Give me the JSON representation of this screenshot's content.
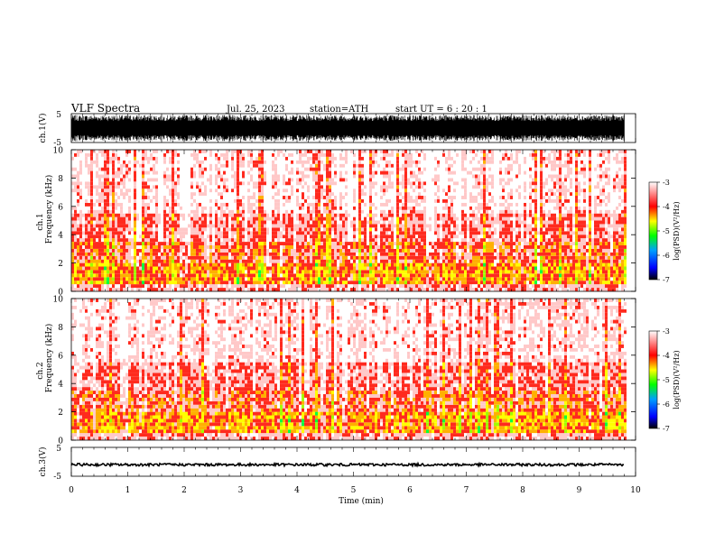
{
  "header": {
    "title": "VLF  Spectra",
    "date": "Jul. 25, 2023",
    "station": "station=ATH",
    "start": "start  UT  =    6  : 20 : 1"
  },
  "chart_data": [
    {
      "type": "line",
      "panel": "ch1-waveform",
      "ylabel": "ch.1(V)",
      "yticks": [
        "5",
        "-5"
      ],
      "ylim": [
        -5,
        5
      ],
      "xlim": [
        0,
        10
      ],
      "data_end_min": 9.8,
      "note_amplitude": "signal fills roughly -4.5 to 4.5 V"
    },
    {
      "type": "heatmap",
      "panel": "ch1-spectrogram",
      "ylabel_top": "ch.1",
      "ylabel": "Frequency  (kHz)",
      "yticks": [
        "10",
        "8",
        "6",
        "4",
        "2",
        "0"
      ],
      "ylim": [
        0,
        10
      ],
      "xlim": [
        0,
        10
      ],
      "data_end_min": 9.8,
      "colorbar": {
        "label": "log(PSD)(V²/Hz)",
        "ticks": [
          "-3",
          "-4",
          "-5",
          "-6",
          "-7"
        ],
        "range": [
          -7,
          -3
        ],
        "colors": [
          "#000000",
          "#0000ff",
          "#00a0ff",
          "#00ff00",
          "#ffff00",
          "#ff0000",
          "#ffffff"
        ]
      }
    },
    {
      "type": "heatmap",
      "panel": "ch2-spectrogram",
      "ylabel_top": "ch.2",
      "ylabel": "Frequency  (kHz)",
      "yticks": [
        "10",
        "8",
        "6",
        "4",
        "2",
        "0"
      ],
      "ylim": [
        0,
        10
      ],
      "xlim": [
        0,
        10
      ],
      "data_end_min": 9.8,
      "colorbar": {
        "label": "log(PSD)(V²/Hz)",
        "ticks": [
          "-3",
          "-4",
          "-5",
          "-6",
          "-7"
        ],
        "range": [
          -7,
          -3
        ],
        "colors": [
          "#000000",
          "#0000ff",
          "#00a0ff",
          "#00ff00",
          "#ffff00",
          "#ff0000",
          "#ffffff"
        ]
      }
    },
    {
      "type": "line",
      "panel": "ch3-waveform",
      "ylabel": "ch.3(V)",
      "yticks": [
        "5",
        "-5"
      ],
      "ylim": [
        -5,
        5
      ],
      "xlim": [
        0,
        10
      ],
      "data_end_min": 9.8,
      "note_amplitude": "flat trace near -1 V"
    }
  ],
  "xaxis": {
    "label": "Time  (min)",
    "ticks": [
      "0",
      "1",
      "2",
      "3",
      "4",
      "5",
      "6",
      "7",
      "8",
      "9",
      "10"
    ]
  }
}
